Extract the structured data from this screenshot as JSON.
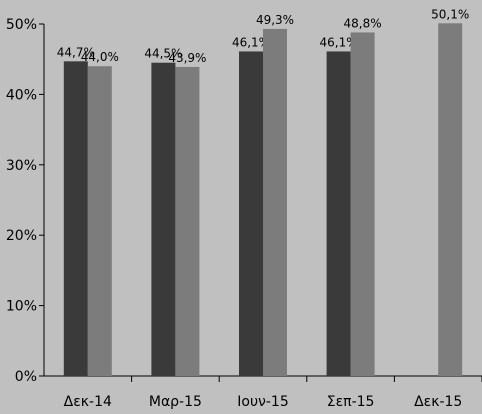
{
  "chart_data": {
    "type": "bar",
    "categories": [
      "Δεκ-14",
      "Μαρ-15",
      "Ιουν-15",
      "Σεπ-15",
      "Δεκ-15"
    ],
    "series": [
      {
        "values": [
          44.7,
          44.5,
          46.1,
          46.1,
          null
        ],
        "color": "#3a3a3a"
      },
      {
        "values": [
          44.0,
          43.9,
          49.3,
          48.8,
          50.1
        ],
        "color": "#7c7c7c"
      }
    ],
    "data_labels": [
      [
        "44,7%",
        "44,5%",
        "46,1%",
        "46,1%",
        null
      ],
      [
        "44,0%",
        "43,9%",
        "49,3%",
        "48,8%",
        "50,1%"
      ]
    ],
    "y_ticks": [
      "0%",
      "10%",
      "20%",
      "30%",
      "40%",
      "50%"
    ],
    "ylim": [
      0,
      50
    ],
    "grid": false,
    "legend": "none",
    "background": "#c0c0c0"
  }
}
